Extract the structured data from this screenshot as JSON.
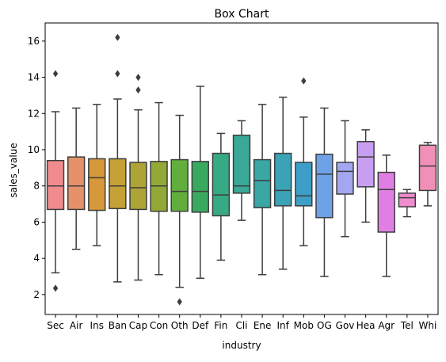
{
  "chart_data": {
    "type": "box",
    "title": "Box Chart",
    "xlabel": "industry",
    "ylabel": "sales_value",
    "ylim": [
      0.9,
      17.0
    ],
    "yticks": [
      2,
      4,
      6,
      8,
      10,
      12,
      14,
      16
    ],
    "grid": false,
    "legend": "none",
    "categories": [
      "Sec",
      "Air",
      "Ins",
      "Ban",
      "Cap",
      "Con",
      "Oth",
      "Def",
      "Fin",
      "Cli",
      "Ene",
      "Inf",
      "Mob",
      "OG",
      "Gov",
      "Hea",
      "Agr",
      "Tel",
      "Whi"
    ],
    "boxes": [
      {
        "category": "Sec",
        "color": "#f08c8e",
        "whisker_low": 3.2,
        "q1": 6.7,
        "median": 8.0,
        "q3": 9.4,
        "whisker_high": 12.1,
        "outliers": [
          14.2,
          2.35
        ]
      },
      {
        "category": "Air",
        "color": "#e4916a",
        "whisker_low": 4.5,
        "q1": 6.7,
        "median": 8.0,
        "q3": 9.6,
        "whisker_high": 12.3,
        "outliers": []
      },
      {
        "category": "Ins",
        "color": "#d6983a",
        "whisker_low": 4.7,
        "q1": 6.65,
        "median": 8.45,
        "q3": 9.5,
        "whisker_high": 12.5,
        "outliers": []
      },
      {
        "category": "Ban",
        "color": "#c4a036",
        "whisker_low": 2.7,
        "q1": 6.75,
        "median": 8.0,
        "q3": 9.5,
        "whisker_high": 12.8,
        "outliers": [
          16.2,
          14.2
        ]
      },
      {
        "category": "Cap",
        "color": "#aea336",
        "whisker_low": 2.8,
        "q1": 6.7,
        "median": 7.9,
        "q3": 9.3,
        "whisker_high": 12.2,
        "outliers": [
          14.0,
          13.3
        ]
      },
      {
        "category": "Con",
        "color": "#93a937",
        "whisker_low": 3.1,
        "q1": 6.6,
        "median": 8.0,
        "q3": 9.35,
        "whisker_high": 12.6,
        "outliers": []
      },
      {
        "category": "Oth",
        "color": "#61ae3c",
        "whisker_low": 2.4,
        "q1": 6.6,
        "median": 7.7,
        "q3": 9.45,
        "whisker_high": 11.9,
        "outliers": [
          1.6
        ]
      },
      {
        "category": "Def",
        "color": "#3aa960",
        "whisker_low": 2.9,
        "q1": 6.55,
        "median": 7.7,
        "q3": 9.35,
        "whisker_high": 13.5,
        "outliers": []
      },
      {
        "category": "Fin",
        "color": "#38a985",
        "whisker_low": 3.9,
        "q1": 6.35,
        "median": 7.5,
        "q3": 9.8,
        "whisker_high": 10.9,
        "outliers": []
      },
      {
        "category": "Cli",
        "color": "#39a897",
        "whisker_low": 6.1,
        "q1": 7.6,
        "median": 8.0,
        "q3": 10.8,
        "whisker_high": 11.6,
        "outliers": []
      },
      {
        "category": "Ene",
        "color": "#3aa6a6",
        "whisker_low": 3.1,
        "q1": 6.8,
        "median": 8.3,
        "q3": 9.45,
        "whisker_high": 12.5,
        "outliers": []
      },
      {
        "category": "Inf",
        "color": "#3ba3b6",
        "whisker_low": 3.4,
        "q1": 6.9,
        "median": 7.75,
        "q3": 9.8,
        "whisker_high": 12.9,
        "outliers": []
      },
      {
        "category": "Mob",
        "color": "#3d9fc8",
        "whisker_low": 4.7,
        "q1": 6.9,
        "median": 7.45,
        "q3": 9.3,
        "whisker_high": 11.8,
        "outliers": [
          13.8
        ]
      },
      {
        "category": "OG",
        "color": "#6ea2e8",
        "whisker_low": 3.0,
        "q1": 6.25,
        "median": 8.65,
        "q3": 9.75,
        "whisker_high": 12.3,
        "outliers": []
      },
      {
        "category": "Gov",
        "color": "#a4a7f0",
        "whisker_low": 5.2,
        "q1": 7.55,
        "median": 8.8,
        "q3": 9.3,
        "whisker_high": 11.6,
        "outliers": []
      },
      {
        "category": "Hea",
        "color": "#c89ef0",
        "whisker_low": 6.0,
        "q1": 7.95,
        "median": 9.6,
        "q3": 10.45,
        "whisker_high": 11.1,
        "outliers": []
      },
      {
        "category": "Agr",
        "color": "#e07fe3",
        "whisker_low": 3.0,
        "q1": 5.45,
        "median": 7.8,
        "q3": 8.75,
        "whisker_high": 9.7,
        "outliers": []
      },
      {
        "category": "Tel",
        "color": "#ef8ccd",
        "whisker_low": 6.3,
        "q1": 6.85,
        "median": 7.35,
        "q3": 7.6,
        "whisker_high": 7.8,
        "outliers": []
      },
      {
        "category": "Whi",
        "color": "#f28fb8",
        "whisker_low": 6.9,
        "q1": 7.75,
        "median": 9.1,
        "q3": 10.25,
        "whisker_high": 10.4,
        "outliers": []
      }
    ]
  }
}
